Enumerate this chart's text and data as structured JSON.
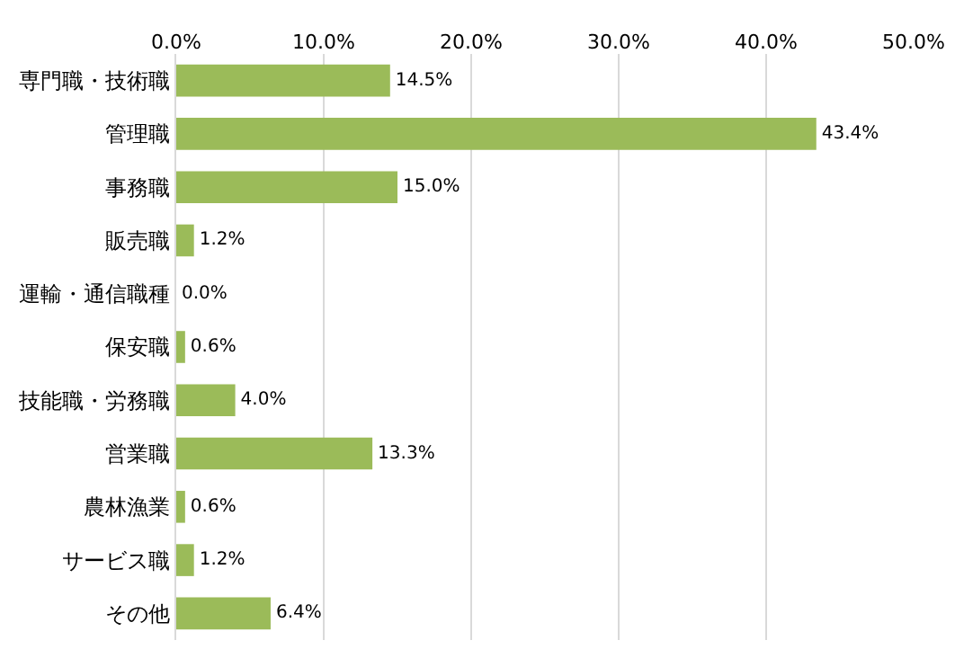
{
  "chart_data": {
    "type": "bar",
    "orientation": "horizontal",
    "categories": [
      "専門職・技術職",
      "管理職",
      "事務職",
      "販売職",
      "運輸・通信職種",
      "保安職",
      "技能職・労務職",
      "営業職",
      "農林漁業",
      "サービス職",
      "その他"
    ],
    "values": [
      14.5,
      43.4,
      15.0,
      1.2,
      0.0,
      0.6,
      4.0,
      13.3,
      0.6,
      1.2,
      6.4
    ],
    "value_labels": [
      "14.5%",
      "43.4%",
      "15.0%",
      "1.2%",
      "0.0%",
      "0.6%",
      "4.0%",
      "13.3%",
      "0.6%",
      "1.2%",
      "6.4%"
    ],
    "color": "#9bbb59",
    "xlim": [
      0,
      50
    ],
    "xticks": [
      {
        "value": 0,
        "label": "0.0%"
      },
      {
        "value": 10,
        "label": "10.0%"
      },
      {
        "value": 20,
        "label": "20.0%"
      },
      {
        "value": 30,
        "label": "30.0%"
      },
      {
        "value": 40,
        "label": "40.0%"
      },
      {
        "value": 50,
        "label": "50.0%"
      }
    ],
    "grid": "x"
  }
}
